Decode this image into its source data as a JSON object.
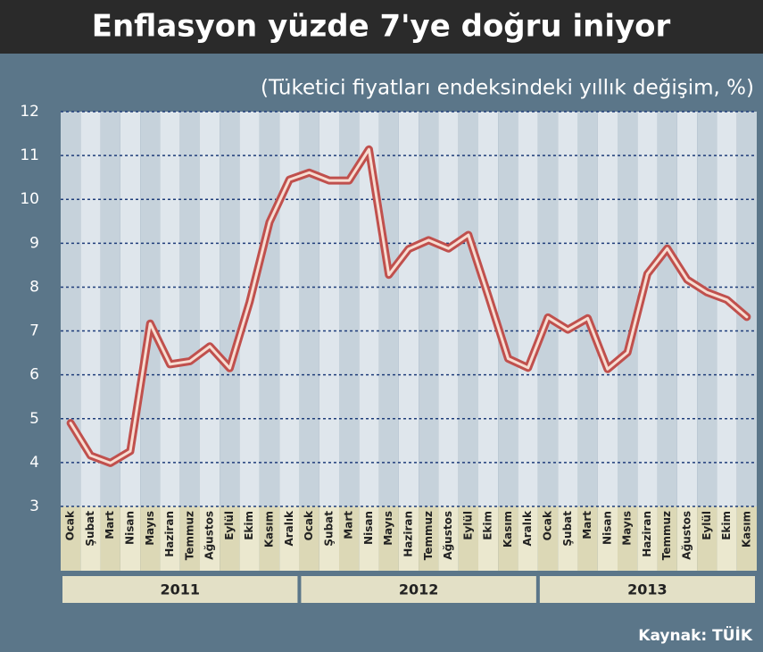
{
  "chart_data": {
    "type": "line",
    "title": "Enflasyon yüzde 7'ye doğru iniyor",
    "subtitle": "(Tüketici fiyatları endeksindeki yıllık değişim, %)",
    "source": "Kaynak: TÜİK",
    "periods": [
      {
        "year": "2011",
        "months": [
          "Ocak",
          "Şubat",
          "Mart",
          "Nisan",
          "Mayıs",
          "Haziran",
          "Temmuz",
          "Ağustos",
          "Eylül",
          "Ekim",
          "Kasım",
          "Aralık"
        ]
      },
      {
        "year": "2012",
        "months": [
          "Ocak",
          "Şubat",
          "Mart",
          "Nisan",
          "Mayıs",
          "Haziran",
          "Temmuz",
          "Ağustos",
          "Eylül",
          "Ekim",
          "Kasım",
          "Aralık"
        ]
      },
      {
        "year": "2013",
        "months": [
          "Ocak",
          "Şubat",
          "Mart",
          "Nisan",
          "Mayıs",
          "Haziran",
          "Temmuz",
          "Ağustos",
          "Eylül",
          "Ekim",
          "Kasım"
        ]
      }
    ],
    "series": [
      {
        "color": "#c0504d",
        "values": [
          4.9,
          4.16,
          3.99,
          4.26,
          7.17,
          6.24,
          6.31,
          6.65,
          6.15,
          7.66,
          9.48,
          10.45,
          10.61,
          10.43,
          10.43,
          11.14,
          8.28,
          8.87,
          9.07,
          8.88,
          9.19,
          7.8,
          6.37,
          6.16,
          7.31,
          7.03,
          7.29,
          6.13,
          6.51,
          8.3,
          8.88,
          8.17,
          7.88,
          7.71,
          7.32
        ]
      }
    ],
    "ylim": [
      3,
      12
    ],
    "yticks": [
      3,
      4,
      5,
      6,
      7,
      8,
      9,
      10,
      11,
      12
    ],
    "grid": true
  }
}
